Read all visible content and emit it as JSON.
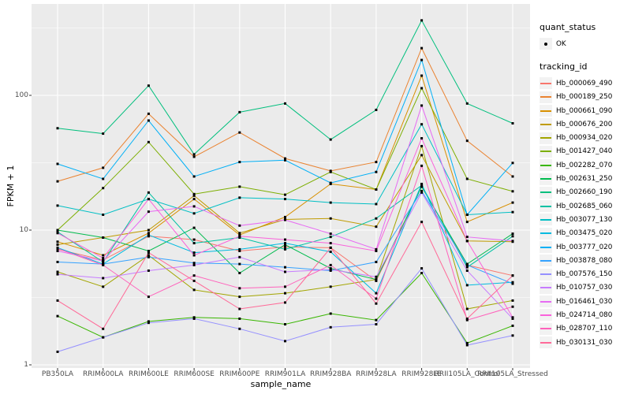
{
  "figure": {
    "panel_bg": "#EBEBEB",
    "grid_color": "#FFFFFF",
    "tick_color": "#333333",
    "axis_text_color": "#4D4D4D",
    "point_color": "#000000"
  },
  "axes": {
    "x": {
      "title": "sample_name",
      "categories": [
        "PB350LA",
        "RRIM600LA",
        "RRIM600LE",
        "RRIM600SE",
        "RRIM600PE",
        "RRIM901LA",
        "RRIM928BA",
        "RRIM928LA",
        "RRIM928LE",
        "RRII105LA_Control",
        "RRII105LA_Stressed"
      ]
    },
    "y": {
      "title": "FPKM + 1",
      "scale": "log10",
      "ticks": [
        1,
        10,
        100
      ]
    }
  },
  "legend": {
    "quant_status": {
      "title": "quant_status",
      "items": [
        {
          "label": "OK",
          "glyph": "point"
        }
      ]
    },
    "tracking": {
      "title": "tracking_id"
    }
  },
  "chart_data": {
    "type": "line",
    "xlabel": "sample_name",
    "ylabel": "FPKM + 1",
    "yscale": "log10",
    "ylim": [
      1,
      480
    ],
    "grid": true,
    "legend_position": "right",
    "x": [
      "PB350LA",
      "RRIM600LA",
      "RRIM600LE",
      "RRIM600SE",
      "RRIM600PE",
      "RRIM901LA",
      "RRIM928BA",
      "RRIM928LA",
      "RRIM928LE",
      "RRII105LA_Control",
      "RRII105LA_Stressed"
    ],
    "series": [
      {
        "name": "Hb_000069_490",
        "color": "#F8766D",
        "values": [
          7.2,
          6.0,
          9.0,
          8.5,
          7.0,
          7.5,
          7.4,
          4.2,
          21,
          5.5,
          4.6
        ]
      },
      {
        "name": "Hb_000189_250",
        "color": "#EA8331",
        "values": [
          23,
          29,
          73,
          35,
          53,
          34,
          27.5,
          32,
          224,
          46,
          25
        ]
      },
      {
        "name": "Hb_000661_090",
        "color": "#D89000",
        "values": [
          8.2,
          6.5,
          9.5,
          17,
          9.2,
          12.5,
          22,
          20,
          140,
          11.5,
          16
        ]
      },
      {
        "name": "Hb_000676_200",
        "color": "#C09B00",
        "values": [
          7.8,
          8.8,
          10,
          18,
          9.5,
          12,
          12.2,
          10.6,
          36,
          8.3,
          8.2
        ]
      },
      {
        "name": "Hb_000934_020",
        "color": "#A3A500",
        "values": [
          4.9,
          3.8,
          6.5,
          3.6,
          3.2,
          3.4,
          3.8,
          4.3,
          42,
          2.6,
          3.0
        ]
      },
      {
        "name": "Hb_001427_040",
        "color": "#7CAE00",
        "values": [
          10,
          20.5,
          45,
          18.5,
          21,
          18.3,
          27,
          20,
          113,
          24,
          19.4
        ]
      },
      {
        "name": "Hb_002282_070",
        "color": "#39B600",
        "values": [
          2.3,
          1.6,
          2.1,
          2.25,
          2.2,
          2.0,
          2.4,
          2.15,
          4.8,
          1.45,
          1.95
        ]
      },
      {
        "name": "Hb_002631_250",
        "color": "#00BB4E",
        "values": [
          10,
          8.8,
          7.0,
          10.4,
          4.8,
          7.8,
          5.2,
          4.3,
          21,
          5.6,
          9.4
        ]
      },
      {
        "name": "Hb_002660_190",
        "color": "#00BF7D",
        "values": [
          57,
          52,
          118,
          36.5,
          75,
          87,
          47,
          78,
          360,
          87,
          62
        ]
      },
      {
        "name": "Hb_002685_060",
        "color": "#00C1A3",
        "values": [
          9.7,
          5.8,
          19,
          8.0,
          8.8,
          7.2,
          8.9,
          12.2,
          21.5,
          5.3,
          9.0
        ]
      },
      {
        "name": "Hb_003077_130",
        "color": "#00BFC4",
        "values": [
          15.2,
          13,
          17,
          13.3,
          17.4,
          17,
          16,
          15.6,
          61,
          13,
          13.6
        ]
      },
      {
        "name": "Hb_003475_020",
        "color": "#00BAE0",
        "values": [
          7.4,
          5.6,
          9.2,
          6.8,
          7.2,
          8.0,
          6.9,
          3.4,
          22,
          3.9,
          4.1
        ]
      },
      {
        "name": "Hb_003777_020",
        "color": "#00B0F6",
        "values": [
          31,
          24,
          65,
          25,
          32,
          33,
          22.4,
          27,
          183,
          13,
          31.5
        ]
      },
      {
        "name": "Hb_003878_080",
        "color": "#35A2FF",
        "values": [
          5.8,
          5.6,
          6.3,
          5.7,
          5.6,
          5.3,
          5.0,
          5.8,
          19.5,
          5.5,
          4.0
        ]
      },
      {
        "name": "Hb_007576_150",
        "color": "#9590FF",
        "values": [
          1.25,
          1.6,
          2.05,
          2.2,
          1.85,
          1.5,
          1.9,
          2.0,
          5.2,
          1.4,
          1.65
        ]
      },
      {
        "name": "Hb_010757_030",
        "color": "#C77CFF",
        "values": [
          4.7,
          4.4,
          5.0,
          5.5,
          6.3,
          4.9,
          5.1,
          4.5,
          19,
          5.0,
          2.2
        ]
      },
      {
        "name": "Hb_016461_030",
        "color": "#E76BF3",
        "values": [
          7.0,
          5.9,
          13.7,
          15,
          10.8,
          11.9,
          9.4,
          7.2,
          84,
          8.9,
          8.3
        ]
      },
      {
        "name": "Hb_024714_080",
        "color": "#FA62DB",
        "values": [
          9.5,
          6.2,
          17,
          6.5,
          9.0,
          8.5,
          8.0,
          7.0,
          48,
          8.3,
          2.25
        ]
      },
      {
        "name": "Hb_028707_110",
        "color": "#FF62BC",
        "values": [
          7.3,
          5.5,
          3.2,
          4.6,
          3.7,
          3.8,
          5.5,
          3.1,
          30,
          2.15,
          2.7
        ]
      },
      {
        "name": "Hb_030131_030",
        "color": "#FF6A98",
        "values": [
          3.0,
          1.85,
          6.8,
          4.2,
          2.6,
          2.9,
          7.4,
          2.85,
          11.5,
          2.2,
          4.6
        ]
      }
    ]
  }
}
